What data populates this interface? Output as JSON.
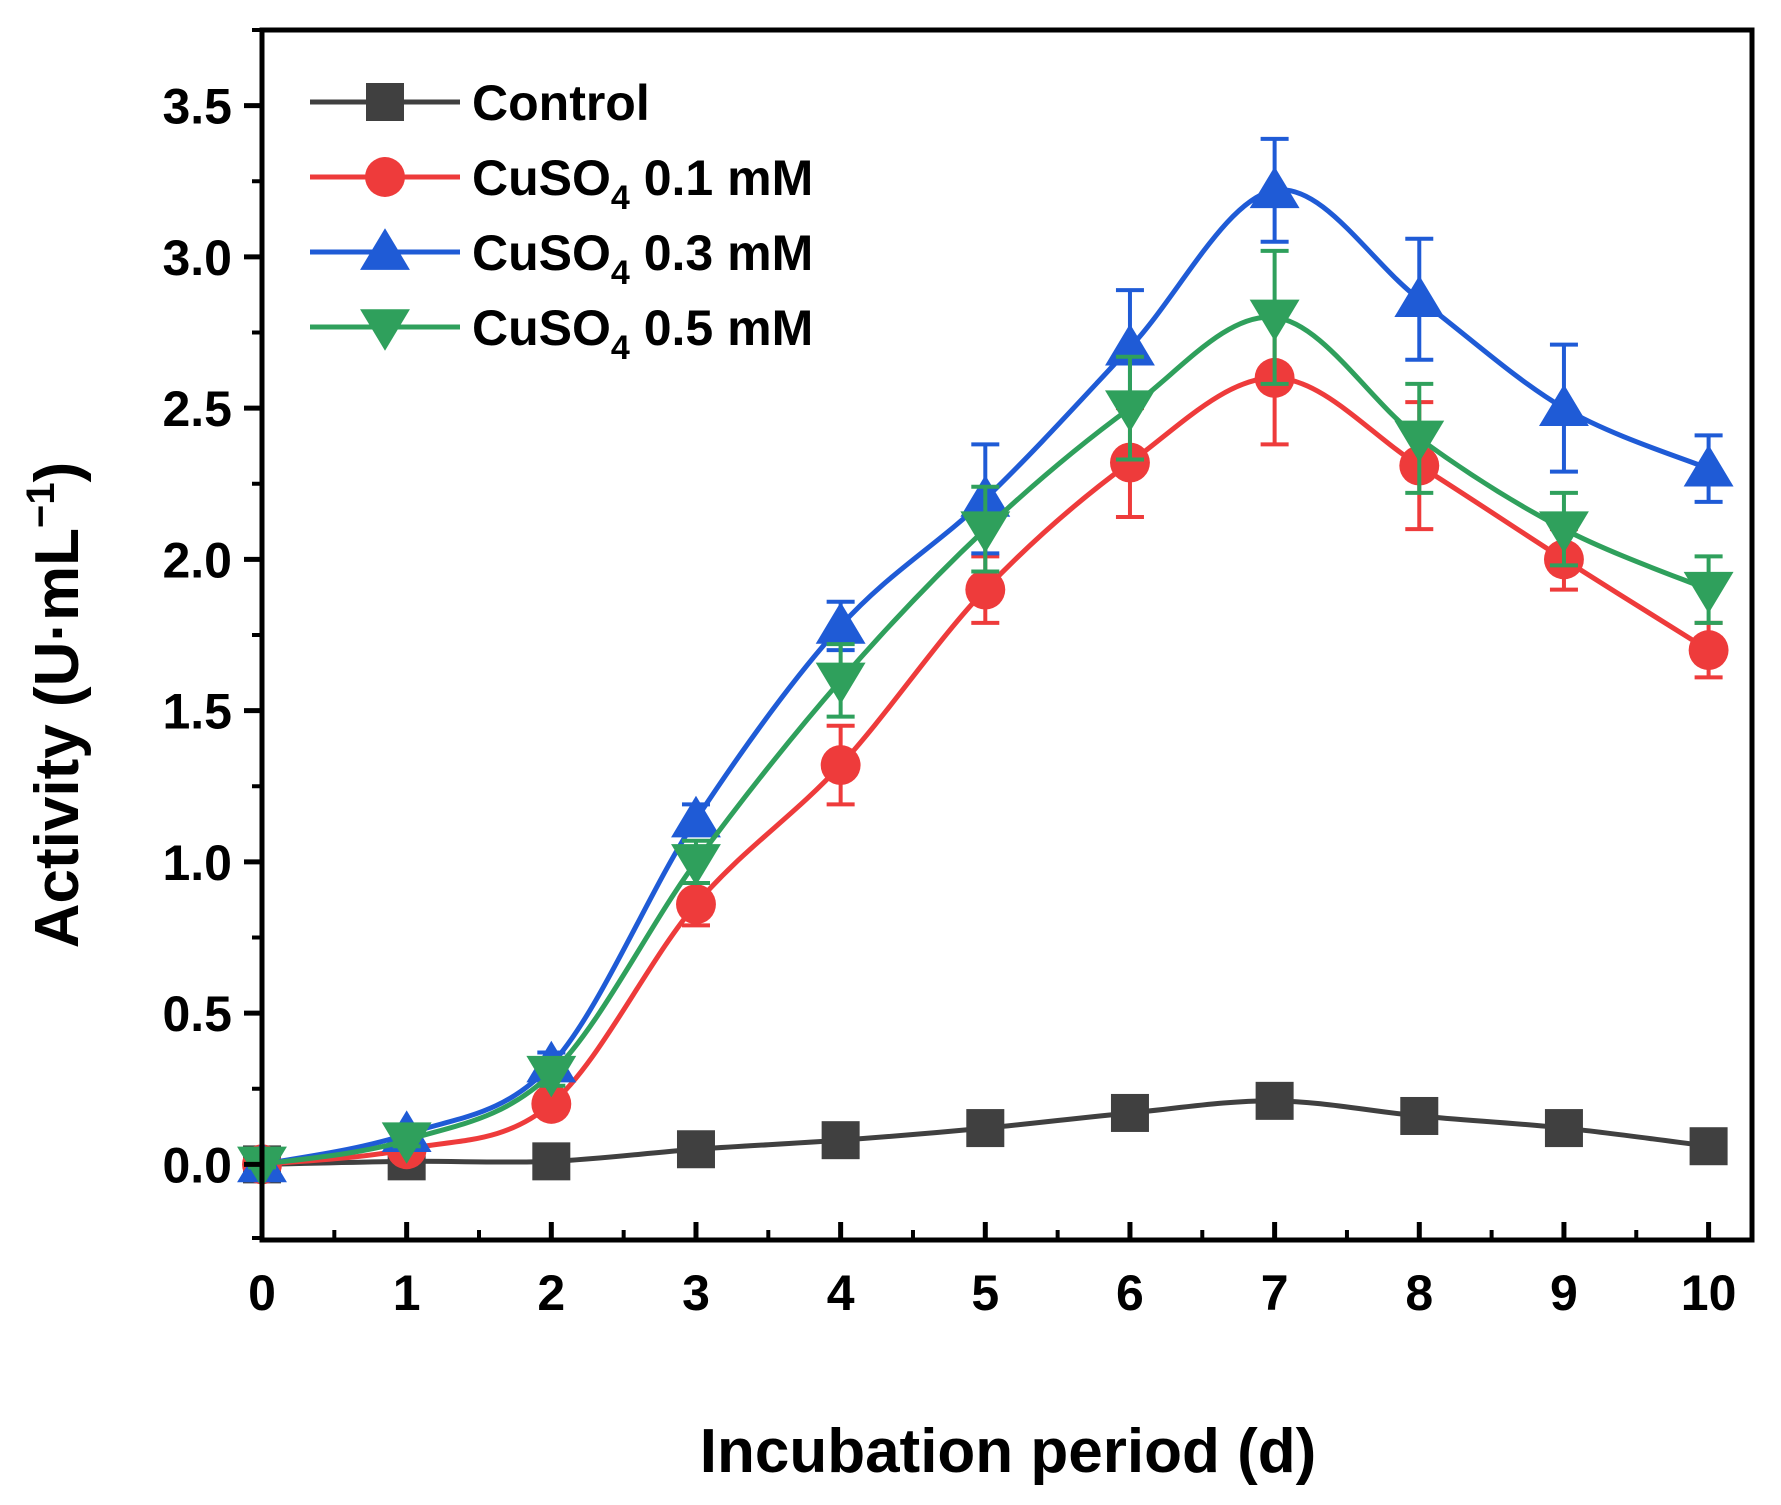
{
  "chart_data": {
    "type": "line",
    "title": "",
    "xlabel": "Incubation period (d)",
    "ylabel_main": "Activity (U·mL",
    "ylabel_sup": "−1",
    "ylabel_close": ")",
    "xlim": [
      0,
      10.3
    ],
    "ylim": [
      -0.25,
      3.75
    ],
    "x_ticks": [
      0,
      1,
      2,
      3,
      4,
      5,
      6,
      7,
      8,
      9,
      10
    ],
    "x_tick_labels": [
      "0",
      "1",
      "2",
      "3",
      "4",
      "5",
      "6",
      "7",
      "8",
      "9",
      "10"
    ],
    "y_ticks": [
      0.0,
      0.5,
      1.0,
      1.5,
      2.0,
      2.5,
      3.0,
      3.5
    ],
    "y_tick_labels": [
      "0.0",
      "0.5",
      "1.0",
      "1.5",
      "2.0",
      "2.5",
      "3.0",
      "3.5"
    ],
    "legend_position": "top-left",
    "x": [
      0,
      1,
      2,
      3,
      4,
      5,
      6,
      7,
      8,
      9,
      10
    ],
    "series": [
      {
        "name": "Control",
        "label_main": "Control",
        "label_sub": "",
        "label_rest": "",
        "color": "#404040",
        "marker": "square",
        "values": [
          0.0,
          0.01,
          0.01,
          0.05,
          0.08,
          0.12,
          0.17,
          0.21,
          0.16,
          0.12,
          0.06
        ],
        "errors": [
          0.01,
          0.01,
          0.01,
          0.01,
          0.01,
          0.01,
          0.02,
          0.02,
          0.02,
          0.01,
          0.01
        ]
      },
      {
        "name": "CuSO4 0.1 mM",
        "label_main": "CuSO",
        "label_sub": "4",
        "label_rest": " 0.1 mM",
        "color": "#ee3b3b",
        "marker": "circle",
        "values": [
          0.0,
          0.05,
          0.2,
          0.86,
          1.32,
          1.9,
          2.32,
          2.6,
          2.31,
          2.0,
          1.7
        ],
        "errors": [
          0.01,
          0.02,
          0.04,
          0.07,
          0.13,
          0.11,
          0.18,
          0.22,
          0.21,
          0.1,
          0.09
        ]
      },
      {
        "name": "CuSO4 0.3 mM",
        "label_main": "CuSO",
        "label_sub": "4",
        "label_rest": " 0.3 mM",
        "color": "#1f5bd6",
        "marker": "triangle-up",
        "values": [
          0.0,
          0.1,
          0.33,
          1.14,
          1.78,
          2.2,
          2.7,
          3.22,
          2.86,
          2.5,
          2.3
        ],
        "errors": [
          0.01,
          0.03,
          0.04,
          0.05,
          0.08,
          0.18,
          0.19,
          0.17,
          0.2,
          0.21,
          0.11
        ]
      },
      {
        "name": "CuSO4 0.5 mM",
        "label_main": "CuSO",
        "label_sub": "4",
        "label_rest": " 0.5 mM",
        "color": "#2fa05c",
        "marker": "triangle-down",
        "values": [
          0.0,
          0.08,
          0.3,
          1.0,
          1.6,
          2.1,
          2.5,
          2.8,
          2.4,
          2.1,
          1.9
        ],
        "errors": [
          0.01,
          0.02,
          0.04,
          0.07,
          0.12,
          0.14,
          0.17,
          0.22,
          0.18,
          0.12,
          0.11
        ]
      }
    ]
  }
}
